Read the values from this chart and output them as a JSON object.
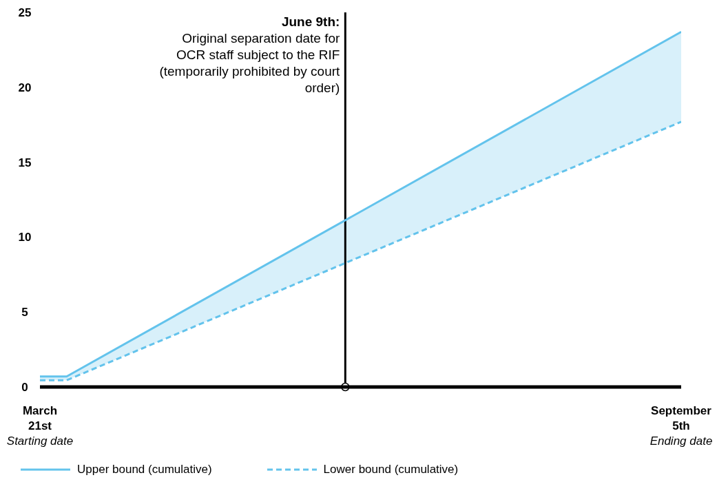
{
  "chart_data": {
    "type": "line",
    "x": [
      "--03-21",
      "--03-28",
      "--09-05"
    ],
    "series": [
      {
        "name": "Upper bound (cumulative)",
        "color": "#63c3ec",
        "line_style": "solid",
        "values": [
          0.7,
          0.7,
          23.7
        ],
        "lower": [
          0.45,
          0.45,
          17.7
        ],
        "upper": [
          0.7,
          0.7,
          23.7
        ]
      },
      {
        "name": "Lower bound (cumulative)",
        "color": "#63c3ec",
        "line_style": "dashed",
        "values": [
          0.45,
          0.45,
          17.7
        ]
      }
    ],
    "xlim": [
      "--03-21",
      "--09-05"
    ],
    "xticks": [
      {
        "value": "--03-21",
        "label": "March 21st"
      },
      {
        "value": "--09-05",
        "label": "September 5th"
      }
    ],
    "ylim": [
      0,
      25
    ],
    "yticks": [
      0,
      5,
      10,
      15,
      20,
      25
    ],
    "grid": false,
    "legend": "bottom",
    "marker": "none",
    "ref_lines": [
      {
        "axis": "x",
        "value": "--06-09",
        "label": "June 9th:",
        "color": "#000000"
      }
    ],
    "annotations": [
      "Starting date",
      "Ending date",
      {
        "text": "Original separation date for OCR staff subject to the RIF (temporarily prohibited by court order)",
        "x": "--06-09"
      }
    ]
  }
}
